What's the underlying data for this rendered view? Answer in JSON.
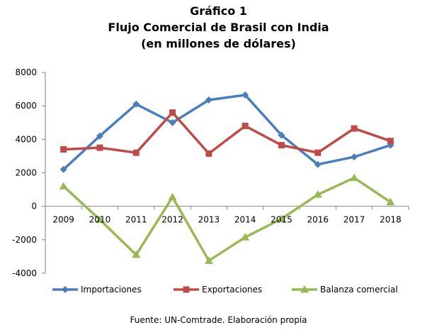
{
  "chart_data": {
    "type": "line",
    "title_lines": [
      "Gráfico 1",
      "Flujo Comercial de Brasil con India",
      "(en millones de dólares)"
    ],
    "categories": [
      "2009",
      "2010",
      "2011",
      "2012",
      "2013",
      "2014",
      "2015",
      "2016",
      "2017",
      "2018"
    ],
    "y_ticks": [
      "8000",
      "6000",
      "4000",
      "2000",
      "0",
      "-2000",
      "-4000"
    ],
    "ylim": [
      -4000,
      8000
    ],
    "grid": false,
    "legend_position": "bottom",
    "series": [
      {
        "name": "Importaciones",
        "color": "#4a7ebb",
        "marker": "diamond",
        "values": [
          2200,
          4200,
          6100,
          5000,
          6350,
          6650,
          4250,
          2500,
          2950,
          3650
        ]
      },
      {
        "name": "Exportaciones",
        "color": "#be4b48",
        "marker": "square",
        "values": [
          3400,
          3500,
          3200,
          5600,
          3150,
          4800,
          3650,
          3200,
          4650,
          3900
        ]
      },
      {
        "name": "Balanza comercial",
        "color": "#98b954",
        "marker": "triangle",
        "values": [
          1200,
          -800,
          -2900,
          550,
          -3250,
          -1850,
          -750,
          700,
          1700,
          250
        ]
      }
    ]
  },
  "footer": {
    "source": "Fuente: UN-Comtrade. Elaboración  propia"
  }
}
